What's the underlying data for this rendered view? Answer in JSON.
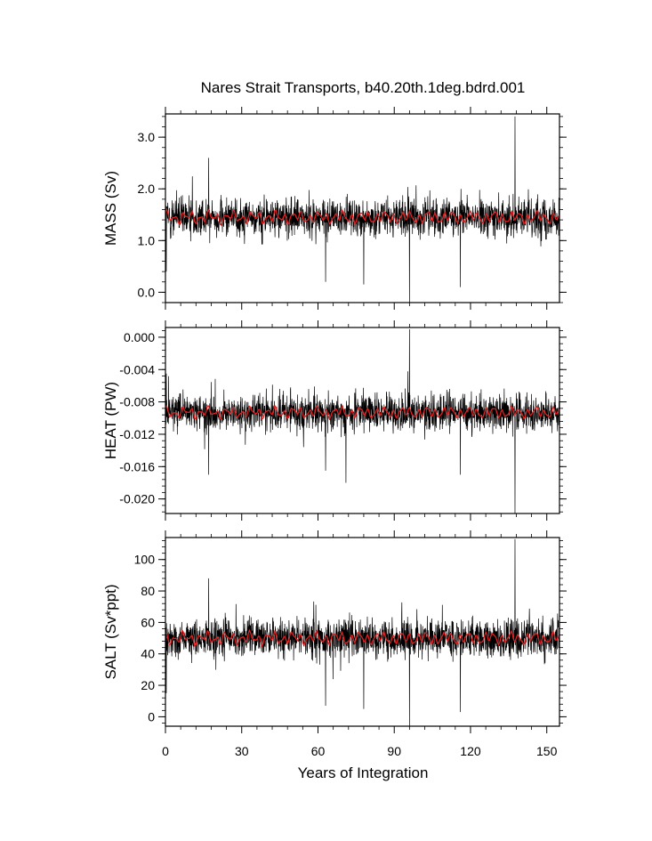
{
  "chart_data": {
    "type": "line",
    "title": "Nares Strait Transports, b40.20th.1deg.bdrd.001",
    "xlabel": "Years of Integration",
    "x_range": [
      0,
      155
    ],
    "x_ticks": [
      "0",
      "30",
      "60",
      "90",
      "120",
      "150"
    ],
    "x_tick_values": [
      0,
      30,
      60,
      90,
      120,
      150
    ],
    "colors": {
      "raw": "#000000",
      "smoothed": "#e02020",
      "frame": "#000000"
    },
    "series_note_visible": false,
    "panels": [
      {
        "ylabel": "MASS (Sv)",
        "ylim": [
          -0.2,
          3.45
        ],
        "y_ticks": [
          "0.0",
          "1.0",
          "2.0",
          "3.0"
        ],
        "y_tick_values": [
          0.0,
          1.0,
          2.0,
          3.0
        ],
        "raw_mean": 1.45,
        "raw_spread": 0.3,
        "smoothed_mean": 1.45,
        "smoothed_amplitude": 0.12,
        "extremes": [
          {
            "x": 96.0,
            "y": -0.2
          },
          {
            "x": 137.5,
            "y": 3.4
          },
          {
            "x": 116.0,
            "y": 0.1
          },
          {
            "x": 78.0,
            "y": 0.15
          },
          {
            "x": 63.0,
            "y": 0.2
          },
          {
            "x": 17.0,
            "y": 2.6
          },
          {
            "x": 0.3,
            "y": 0.4
          }
        ]
      },
      {
        "ylabel": "HEAT (PW)",
        "ylim": [
          -0.0218,
          0.0012
        ],
        "y_ticks": [
          "0.000",
          "-0.004",
          "-0.008",
          "-0.012",
          "-0.016",
          "-0.020"
        ],
        "y_tick_values": [
          0.0,
          -0.004,
          -0.008,
          -0.012,
          -0.016,
          -0.02
        ],
        "raw_mean": -0.0093,
        "raw_spread": 0.0018,
        "smoothed_mean": -0.0093,
        "smoothed_amplitude": 0.0007,
        "extremes": [
          {
            "x": 96.0,
            "y": 0.001
          },
          {
            "x": 137.5,
            "y": -0.0218
          },
          {
            "x": 116.0,
            "y": -0.017
          },
          {
            "x": 63.0,
            "y": -0.0165
          },
          {
            "x": 71.0,
            "y": -0.018
          },
          {
            "x": 17.0,
            "y": -0.017
          },
          {
            "x": 0.3,
            "y": -0.0045
          }
        ]
      },
      {
        "ylabel": "SALT (Sv*ppt)",
        "ylim": [
          -6,
          114
        ],
        "y_ticks": [
          "0",
          "20",
          "40",
          "60",
          "80",
          "100"
        ],
        "y_tick_values": [
          0,
          20,
          40,
          60,
          80,
          100
        ],
        "raw_mean": 50,
        "raw_spread": 10,
        "smoothed_mean": 50,
        "smoothed_amplitude": 4,
        "extremes": [
          {
            "x": 96.0,
            "y": -6
          },
          {
            "x": 137.5,
            "y": 113
          },
          {
            "x": 116.0,
            "y": 3
          },
          {
            "x": 78.0,
            "y": 5
          },
          {
            "x": 63.0,
            "y": 7
          },
          {
            "x": 17.0,
            "y": 88
          },
          {
            "x": 0.3,
            "y": 15
          }
        ]
      }
    ]
  }
}
